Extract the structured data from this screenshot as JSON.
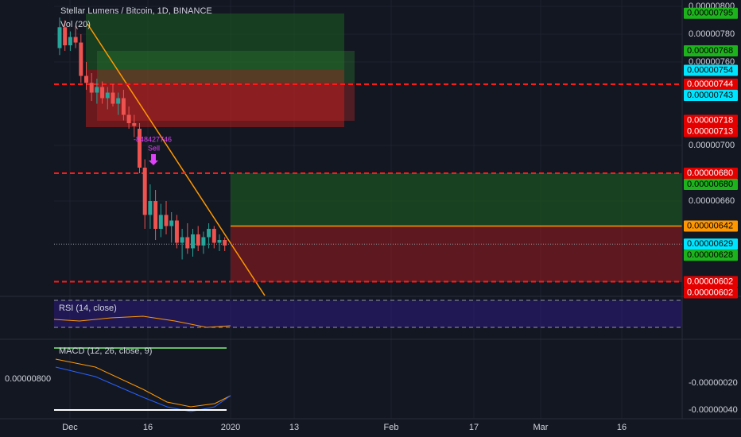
{
  "header": {
    "title": "Stellar Lumens / Bitcoin, 1D, BINANCE",
    "volume": "Vol (20)"
  },
  "chart_data": {
    "type": "candlestick",
    "open": [
      7.7e-06,
      7.85e-06,
      7.72e-06,
      7.78e-06,
      7.74e-06,
      7.5e-06,
      7.45e-06,
      7.38e-06,
      7.42e-06,
      7.34e-06,
      7.38e-06,
      7.3e-06,
      7.34e-06,
      7.22e-06,
      7.16e-06,
      7.12e-06,
      6.84e-06,
      6.5e-06,
      6.6e-06,
      6.4e-06,
      6.5e-06,
      6.42e-06,
      6.46e-06,
      6.3e-06,
      6.34e-06,
      6.26e-06,
      6.36e-06,
      6.28e-06,
      6.34e-06,
      6.4e-06,
      6.3e-06,
      6.32e-06
    ],
    "high": [
      7.92e-06,
      7.9e-06,
      7.82e-06,
      7.86e-06,
      7.8e-06,
      7.6e-06,
      7.52e-06,
      7.48e-06,
      7.46e-06,
      7.42e-06,
      7.44e-06,
      7.38e-06,
      7.4e-06,
      7.28e-06,
      7.22e-06,
      7.16e-06,
      6.9e-06,
      6.72e-06,
      6.68e-06,
      6.58e-06,
      6.6e-06,
      6.52e-06,
      6.5e-06,
      6.4e-06,
      6.44e-06,
      6.4e-06,
      6.42e-06,
      6.38e-06,
      6.44e-06,
      6.42e-06,
      6.36e-06,
      6.34e-06
    ],
    "low": [
      7.65e-06,
      7.68e-06,
      7.68e-06,
      7.7e-06,
      7.45e-06,
      7.4e-06,
      7.32e-06,
      7.3e-06,
      7.3e-06,
      7.26e-06,
      7.28e-06,
      7.22e-06,
      7.18e-06,
      7.12e-06,
      7.06e-06,
      6.8e-06,
      6.4e-06,
      6.4e-06,
      6.32e-06,
      6.34e-06,
      6.36e-06,
      6.3e-06,
      6.26e-06,
      6.18e-06,
      6.22e-06,
      6.2e-06,
      6.24e-06,
      6.22e-06,
      6.26e-06,
      6.26e-06,
      6.24e-06,
      6.24e-06
    ],
    "close": [
      7.85e-06,
      7.72e-06,
      7.78e-06,
      7.74e-06,
      7.5e-06,
      7.45e-06,
      7.38e-06,
      7.42e-06,
      7.34e-06,
      7.38e-06,
      7.3e-06,
      7.34e-06,
      7.22e-06,
      7.16e-06,
      7.14e-06,
      6.84e-06,
      6.5e-06,
      6.6e-06,
      6.4e-06,
      6.5e-06,
      6.42e-06,
      6.46e-06,
      6.3e-06,
      6.34e-06,
      6.26e-06,
      6.36e-06,
      6.28e-06,
      6.34e-06,
      6.4e-06,
      6.3e-06,
      6.32e-06,
      6.28e-06
    ],
    "up_color": "#26a69a",
    "down_color": "#ef5350",
    "ylim": [
      5.92e-06,
      8.046e-06
    ],
    "yticks": [
      {
        "value": 8e-06,
        "label": "0.00000800"
      },
      {
        "value": 7.8e-06,
        "label": "0.00000780"
      },
      {
        "value": 7.6e-06,
        "label": "0.00000760"
      },
      {
        "value": 7e-06,
        "label": "0.00000700"
      },
      {
        "value": 6.6e-06,
        "label": "0.00000660"
      }
    ],
    "price_tags": [
      {
        "value": 7.95e-06,
        "label": "0.00000795",
        "color": "#1db31d"
      },
      {
        "value": 7.68e-06,
        "label": "0.00000768",
        "color": "#1db31d"
      },
      {
        "value": 7.54e-06,
        "label": "0.00000754",
        "color": "#00e5ff"
      },
      {
        "value": 7.44e-06,
        "label": "0.00000744",
        "color": "#e50000"
      },
      {
        "value": 7.43e-06,
        "label": "0.00000743",
        "color": "#00e5ff"
      },
      {
        "value": 7.18e-06,
        "label": "0.00000718",
        "color": "#e50000"
      },
      {
        "value": 7.13e-06,
        "label": "0.00000713",
        "color": "#e50000"
      },
      {
        "value": 6.8e-06,
        "label": "0.00000680",
        "color": "#e50000"
      },
      {
        "value": 6.8e-06,
        "label": "0.00000680",
        "color": "#1db31d"
      },
      {
        "value": 6.42e-06,
        "label": "0.00000642",
        "color": "#ff9800"
      },
      {
        "value": 6.29e-06,
        "label": "0.00000629",
        "color": "#00e5ff"
      },
      {
        "value": 6.28e-06,
        "label": "0.00000628",
        "color": "#1db31d"
      },
      {
        "value": 6.02e-06,
        "label": "0.00000602",
        "color": "#e50000"
      },
      {
        "value": 6.02e-06,
        "label": "0.00000602",
        "color": "#e50000"
      }
    ]
  },
  "annotations": {
    "signal_value": "-848427746",
    "signal": "Sell"
  },
  "time_axis": [
    "Dec",
    "16",
    "2020",
    "13",
    "Feb",
    "17",
    "Mar",
    "16"
  ],
  "rsi": {
    "label": "RSI (14, close)"
  },
  "macd": {
    "label": "MACD (12, 26, close, 9)",
    "left_tick": "0.00000800",
    "ticks": [
      "-0.00000020",
      "-0.00000040"
    ]
  }
}
